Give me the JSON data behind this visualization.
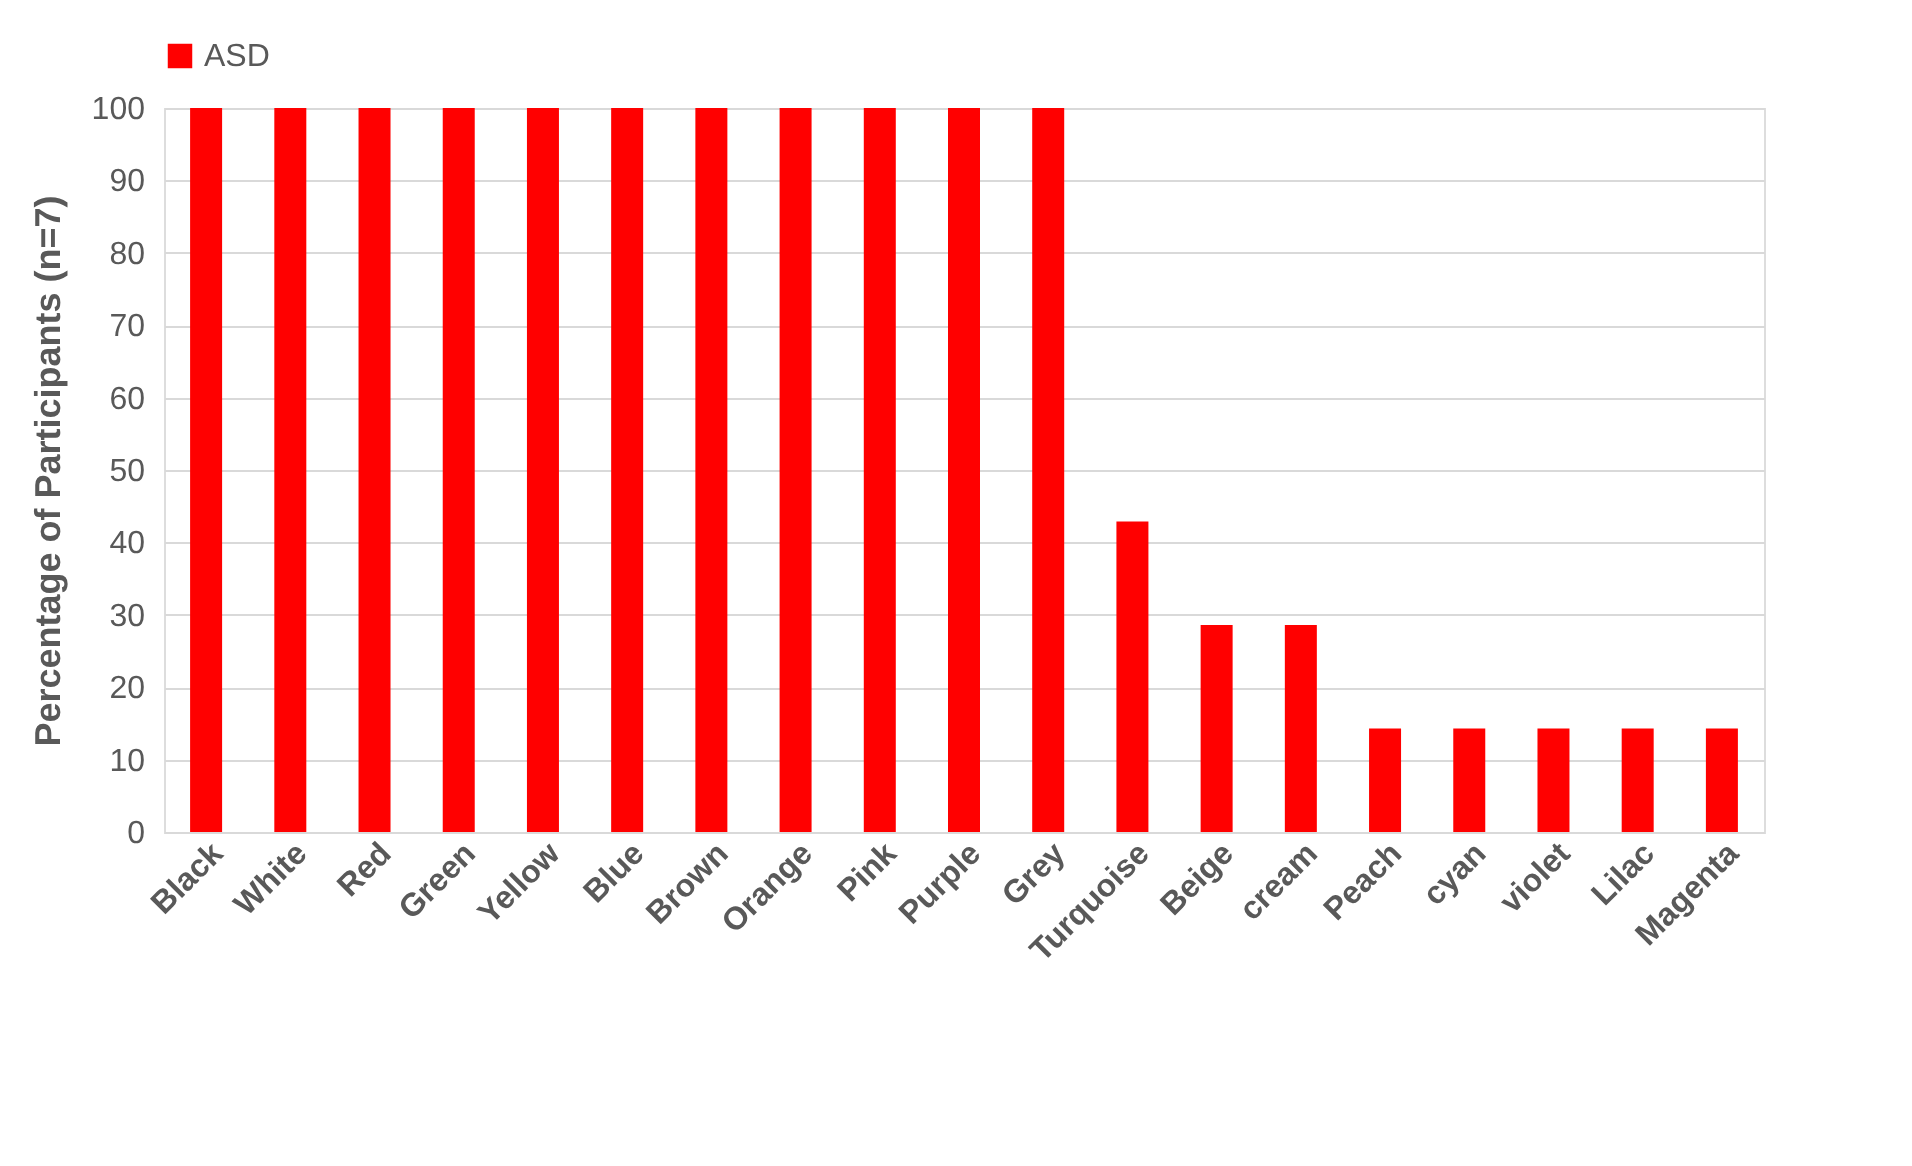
{
  "chart_data": {
    "type": "bar",
    "ylabel": "Percentage of Participants (n=7)",
    "categories": [
      "Black",
      "White",
      "Red",
      "Green",
      "Yellow",
      "Blue",
      "Brown",
      "Orange",
      "Pink",
      "Purple",
      "Grey",
      "Turquoise",
      "Beige",
      "cream",
      "Peach",
      "cyan",
      "violet",
      "Lilac",
      "Magenta"
    ],
    "series": [
      {
        "name": "ASD",
        "color": "#ff0000",
        "values": [
          100,
          100,
          100,
          100,
          100,
          100,
          100,
          100,
          100,
          100,
          100,
          42.9,
          28.6,
          28.6,
          14.3,
          14.3,
          14.3,
          14.3,
          14.3
        ]
      }
    ],
    "ylim": [
      0,
      100
    ],
    "yticks": [
      0,
      10,
      20,
      30,
      40,
      50,
      60,
      70,
      80,
      90,
      100
    ],
    "grid": "y",
    "legend": "top"
  }
}
